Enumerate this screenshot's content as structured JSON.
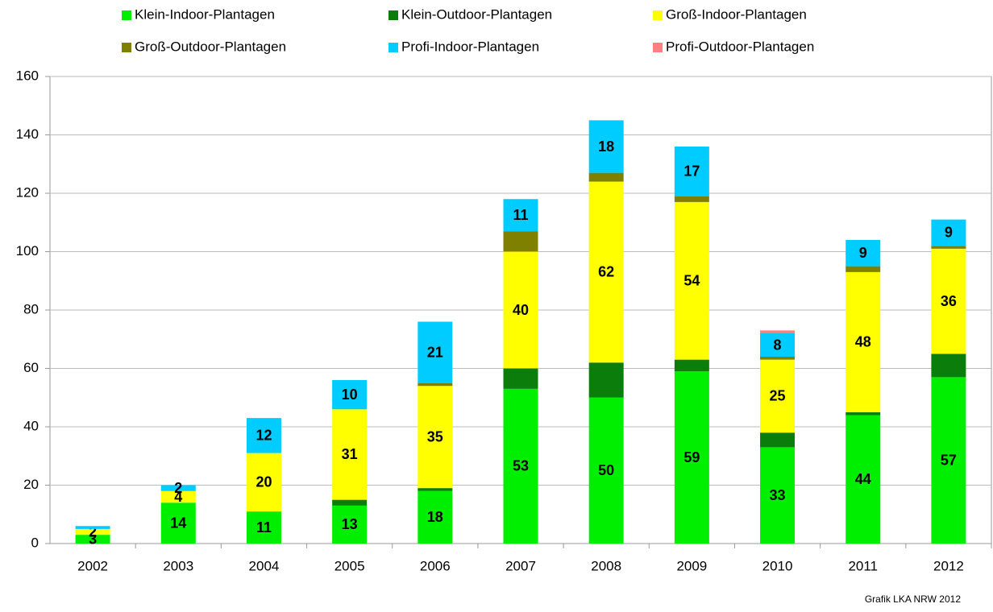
{
  "chart_data": {
    "type": "stacked_bar",
    "categories": [
      "2002",
      "2003",
      "2004",
      "2005",
      "2006",
      "2007",
      "2008",
      "2009",
      "2010",
      "2011",
      "2012"
    ],
    "series": [
      {
        "name": "Klein-Indoor-Plantagen",
        "color": "#00ee00",
        "values": [
          3,
          14,
          11,
          13,
          18,
          53,
          50,
          59,
          33,
          44,
          57
        ],
        "value_labels": [
          "3",
          "14",
          "11",
          "13",
          "18",
          "53",
          "50",
          "59",
          "33",
          "44",
          "57"
        ]
      },
      {
        "name": "Klein-Outdoor-Plantagen",
        "color": "#0b7d0b",
        "values": [
          0,
          0,
          0,
          2,
          1,
          7,
          12,
          4,
          5,
          1,
          8
        ],
        "value_labels": [
          null,
          null,
          null,
          null,
          null,
          null,
          null,
          null,
          null,
          null,
          null
        ]
      },
      {
        "name": "Groß-Indoor-Plantagen",
        "color": "#ffff00",
        "values": [
          2,
          4,
          20,
          31,
          35,
          40,
          62,
          54,
          25,
          48,
          36
        ],
        "value_labels": [
          "2",
          "4",
          "20",
          "31",
          "35",
          "40",
          "62",
          "54",
          "25",
          "48",
          "36"
        ]
      },
      {
        "name": "Groß-Outdoor-Plantagen",
        "color": "#808000",
        "values": [
          0,
          0,
          0,
          0,
          1,
          7,
          3,
          2,
          1,
          2,
          1
        ],
        "value_labels": [
          null,
          null,
          null,
          null,
          null,
          null,
          null,
          null,
          null,
          null,
          null
        ]
      },
      {
        "name": "Profi-Indoor-Plantagen",
        "color": "#00ccff",
        "values": [
          1,
          2,
          12,
          10,
          21,
          11,
          18,
          17,
          8,
          9,
          9
        ],
        "value_labels": [
          null,
          "2",
          "12",
          "10",
          "21",
          "11",
          "18",
          "17",
          "8",
          "9",
          "9"
        ]
      },
      {
        "name": "Profi-Outdoor-Plantagen",
        "color": "#ff8080",
        "values": [
          0,
          0,
          0,
          0,
          0,
          0,
          0,
          0,
          1,
          0,
          0
        ],
        "value_labels": [
          null,
          null,
          null,
          null,
          null,
          null,
          null,
          null,
          null,
          null,
          null
        ]
      }
    ],
    "ylim": [
      0,
      160
    ],
    "yticks": [
      0,
      20,
      40,
      60,
      80,
      100,
      120,
      140,
      160
    ],
    "grid": true,
    "source": "Grafik LKA NRW 2012"
  }
}
